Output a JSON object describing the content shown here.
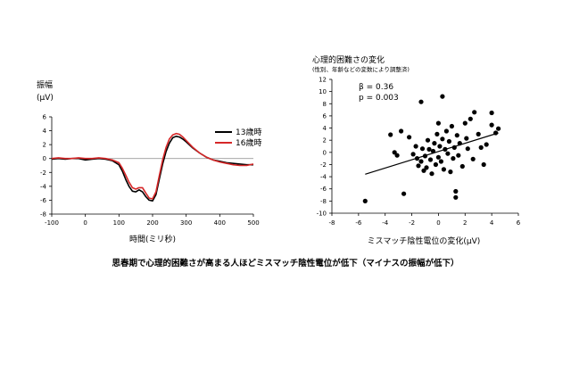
{
  "caption": "思春期で心理的困難さが高まる人ほどミスマッチ陰性電位が低下（マイナスの振幅が低下）",
  "chart_data": [
    {
      "type": "line",
      "title": "",
      "ylabel_line1": "振幅",
      "ylabel_line2": "(μV)",
      "xlabel": "時間(ミリ秒)",
      "xlim": [
        -100,
        500
      ],
      "ylim": [
        -8,
        6
      ],
      "xticks": [
        -100,
        0,
        100,
        200,
        300,
        400,
        500
      ],
      "yticks": [
        6,
        4,
        2,
        0,
        -2,
        -4,
        -6,
        -8
      ],
      "legend_position": "center-right",
      "x": [
        -100,
        -80,
        -60,
        -40,
        -20,
        0,
        20,
        40,
        60,
        80,
        100,
        110,
        120,
        130,
        140,
        150,
        160,
        170,
        180,
        190,
        200,
        210,
        220,
        230,
        240,
        250,
        260,
        270,
        280,
        290,
        300,
        320,
        340,
        360,
        380,
        400,
        420,
        440,
        460,
        480,
        500
      ],
      "series": [
        {
          "name": "13歳時",
          "color": "#000000",
          "values": [
            -0.1,
            0.0,
            -0.1,
            0.0,
            0.0,
            -0.2,
            -0.1,
            0.0,
            -0.1,
            -0.3,
            -0.9,
            -1.8,
            -3.0,
            -4.0,
            -4.7,
            -4.8,
            -4.5,
            -4.8,
            -5.5,
            -6.0,
            -6.1,
            -5.2,
            -3.0,
            -0.8,
            1.0,
            2.2,
            3.0,
            3.2,
            3.1,
            2.8,
            2.4,
            1.5,
            0.8,
            0.2,
            -0.2,
            -0.4,
            -0.6,
            -0.7,
            -0.8,
            -0.9,
            -0.9
          ]
        },
        {
          "name": "16歳時",
          "color": "#d62728",
          "values": [
            0.0,
            0.1,
            0.0,
            0.0,
            0.1,
            0.0,
            0.0,
            0.1,
            0.0,
            -0.2,
            -0.6,
            -1.4,
            -2.4,
            -3.4,
            -4.2,
            -4.4,
            -4.2,
            -4.2,
            -5.0,
            -5.7,
            -5.8,
            -4.8,
            -2.5,
            -0.2,
            1.6,
            2.8,
            3.4,
            3.6,
            3.5,
            3.1,
            2.6,
            1.6,
            0.8,
            0.2,
            -0.2,
            -0.5,
            -0.7,
            -0.9,
            -1.0,
            -1.0,
            -0.8
          ]
        }
      ]
    },
    {
      "type": "scatter",
      "title": "心理的困難さの変化",
      "subtitle": "(性別、年齢などの変数により調整済)",
      "xlabel": "ミスマッチ陰性電位の変化(μV)",
      "ylabel": "",
      "xlim": [
        -8,
        6
      ],
      "ylim": [
        -10,
        12
      ],
      "xticks": [
        -8,
        -6,
        -4,
        -2,
        0,
        2,
        4,
        6
      ],
      "yticks": [
        12,
        10,
        8,
        6,
        4,
        2,
        0,
        -2,
        -4,
        -6,
        -8,
        -10
      ],
      "annotation_beta": "β = 0.36",
      "annotation_p": "p = 0.003",
      "fit_line": {
        "x": [
          -5.5,
          4.5
        ],
        "y": [
          -3.6,
          3.2
        ]
      },
      "points": [
        [
          -5.5,
          -8.0
        ],
        [
          -3.6,
          2.9
        ],
        [
          -3.3,
          0.0
        ],
        [
          -3.1,
          -0.5
        ],
        [
          -2.8,
          3.5
        ],
        [
          -2.6,
          -6.8
        ],
        [
          -2.2,
          2.5
        ],
        [
          -1.9,
          -0.3
        ],
        [
          -1.7,
          1.0
        ],
        [
          -1.6,
          -1.0
        ],
        [
          -1.5,
          -2.2
        ],
        [
          -1.3,
          -1.5
        ],
        [
          -1.3,
          8.3
        ],
        [
          -1.2,
          0.6
        ],
        [
          -1.1,
          -3.0
        ],
        [
          -1.0,
          -0.6
        ],
        [
          -0.9,
          -2.5
        ],
        [
          -0.8,
          2.0
        ],
        [
          -0.7,
          0.5
        ],
        [
          -0.6,
          -1.2
        ],
        [
          -0.5,
          -3.5
        ],
        [
          -0.4,
          0.2
        ],
        [
          -0.3,
          1.5
        ],
        [
          -0.2,
          -2.0
        ],
        [
          -0.1,
          3.0
        ],
        [
          0.0,
          -0.8
        ],
        [
          0.0,
          4.8
        ],
        [
          0.1,
          1.0
        ],
        [
          0.2,
          -1.5
        ],
        [
          0.3,
          9.2
        ],
        [
          0.3,
          2.2
        ],
        [
          0.4,
          -2.8
        ],
        [
          0.5,
          0.5
        ],
        [
          0.6,
          3.5
        ],
        [
          0.7,
          -0.2
        ],
        [
          0.8,
          1.8
        ],
        [
          0.9,
          -3.2
        ],
        [
          1.0,
          4.3
        ],
        [
          1.1,
          -1.0
        ],
        [
          1.2,
          0.8
        ],
        [
          1.3,
          -7.4
        ],
        [
          1.3,
          -6.4
        ],
        [
          1.4,
          2.8
        ],
        [
          1.5,
          -0.5
        ],
        [
          1.6,
          1.5
        ],
        [
          1.8,
          -2.3
        ],
        [
          2.0,
          4.8
        ],
        [
          2.1,
          2.3
        ],
        [
          2.2,
          0.6
        ],
        [
          2.4,
          5.5
        ],
        [
          2.6,
          -1.1
        ],
        [
          2.7,
          6.6
        ],
        [
          3.0,
          3.0
        ],
        [
          3.2,
          0.8
        ],
        [
          3.4,
          -2.0
        ],
        [
          3.6,
          1.3
        ],
        [
          4.0,
          4.5
        ],
        [
          4.0,
          6.5
        ],
        [
          4.3,
          3.2
        ],
        [
          4.5,
          3.9
        ]
      ]
    }
  ]
}
